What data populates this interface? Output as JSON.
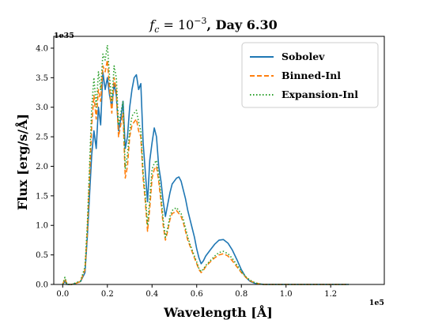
{
  "chart_data": {
    "type": "line",
    "title": "f_c = 10^{-3}, Day 6.30",
    "title_parts": {
      "f": "f",
      "sub": "c",
      "eq": " = 10",
      "sup": "−3",
      "rest": ", Day 6.30"
    },
    "xlabel": "Wavelength [Å]",
    "ylabel": "Flux [erg/s/Å]",
    "x_offset_label": "1e5",
    "y_offset_label": "1e35",
    "x_scale": 100000,
    "y_scale": 1e+35,
    "xlim": [
      -0.04,
      1.44
    ],
    "ylim": [
      0.0,
      4.2
    ],
    "xticks": [
      0.0,
      0.2,
      0.4,
      0.6,
      0.8,
      1.0,
      1.2
    ],
    "xtick_labels": [
      "0.0",
      "0.2",
      "0.4",
      "0.6",
      "0.8",
      "1.0",
      "1.2"
    ],
    "yticks": [
      0.0,
      0.5,
      1.0,
      1.5,
      2.0,
      2.5,
      3.0,
      3.5,
      4.0
    ],
    "ytick_labels": [
      "0.0",
      "0.5",
      "1.0",
      "1.5",
      "2.0",
      "2.5",
      "3.0",
      "3.5",
      "4.0"
    ],
    "legend_position": "top-right",
    "grid": false,
    "series": [
      {
        "name": "Sobolev",
        "color": "#1f77b4",
        "style": "solid",
        "x": [
          0.0,
          0.01,
          0.015,
          0.02,
          0.04,
          0.06,
          0.08,
          0.1,
          0.11,
          0.12,
          0.13,
          0.14,
          0.15,
          0.16,
          0.17,
          0.18,
          0.19,
          0.2,
          0.21,
          0.22,
          0.23,
          0.24,
          0.25,
          0.26,
          0.27,
          0.28,
          0.29,
          0.3,
          0.31,
          0.32,
          0.33,
          0.34,
          0.35,
          0.36,
          0.37,
          0.38,
          0.39,
          0.4,
          0.41,
          0.42,
          0.43,
          0.44,
          0.45,
          0.46,
          0.47,
          0.48,
          0.49,
          0.5,
          0.51,
          0.52,
          0.53,
          0.54,
          0.55,
          0.56,
          0.57,
          0.58,
          0.59,
          0.6,
          0.61,
          0.62,
          0.63,
          0.64,
          0.66,
          0.68,
          0.7,
          0.72,
          0.74,
          0.76,
          0.78,
          0.8,
          0.82,
          0.84,
          0.86,
          0.88,
          0.9,
          0.92,
          0.94,
          0.96,
          1.0,
          1.05,
          1.1,
          1.2,
          1.28
        ],
        "y": [
          0.0,
          0.05,
          0.02,
          0.0,
          0.0,
          0.02,
          0.05,
          0.2,
          0.8,
          1.5,
          2.2,
          2.6,
          2.3,
          3.0,
          2.7,
          3.6,
          3.3,
          3.5,
          3.2,
          3.0,
          3.4,
          3.2,
          2.6,
          2.8,
          3.1,
          2.3,
          2.5,
          3.0,
          3.3,
          3.5,
          3.55,
          3.3,
          3.4,
          2.4,
          1.9,
          1.4,
          2.1,
          2.4,
          2.65,
          2.5,
          2.0,
          1.75,
          1.4,
          1.15,
          1.35,
          1.55,
          1.7,
          1.75,
          1.8,
          1.82,
          1.75,
          1.6,
          1.45,
          1.25,
          1.1,
          0.95,
          0.8,
          0.6,
          0.45,
          0.35,
          0.4,
          0.48,
          0.58,
          0.68,
          0.75,
          0.76,
          0.7,
          0.58,
          0.42,
          0.25,
          0.12,
          0.05,
          0.02,
          0.01,
          0.0,
          0.0,
          0.0,
          0.0,
          0.0,
          0.0,
          0.0,
          0.0,
          0.0
        ]
      },
      {
        "name": "Binned-Inl",
        "color": "#ff7f0e",
        "style": "dashed",
        "x": [
          0.0,
          0.01,
          0.015,
          0.02,
          0.04,
          0.06,
          0.08,
          0.1,
          0.11,
          0.12,
          0.13,
          0.14,
          0.15,
          0.16,
          0.17,
          0.18,
          0.19,
          0.2,
          0.21,
          0.22,
          0.23,
          0.24,
          0.25,
          0.26,
          0.27,
          0.28,
          0.29,
          0.3,
          0.31,
          0.32,
          0.33,
          0.34,
          0.35,
          0.36,
          0.37,
          0.38,
          0.39,
          0.4,
          0.41,
          0.42,
          0.43,
          0.44,
          0.45,
          0.46,
          0.47,
          0.48,
          0.49,
          0.5,
          0.51,
          0.52,
          0.53,
          0.54,
          0.55,
          0.56,
          0.57,
          0.58,
          0.59,
          0.6,
          0.61,
          0.62,
          0.63,
          0.64,
          0.66,
          0.68,
          0.7,
          0.72,
          0.74,
          0.76,
          0.78,
          0.8,
          0.82,
          0.84,
          0.86,
          0.88,
          0.9,
          0.92,
          0.94,
          0.96,
          1.0,
          1.05,
          1.1,
          1.2,
          1.28
        ],
        "y": [
          0.0,
          0.1,
          0.05,
          0.0,
          0.0,
          0.02,
          0.05,
          0.25,
          0.9,
          1.8,
          2.7,
          3.2,
          2.8,
          3.3,
          3.1,
          3.7,
          3.6,
          3.8,
          3.3,
          2.9,
          3.5,
          3.3,
          2.5,
          2.7,
          2.9,
          1.8,
          2.0,
          2.5,
          2.7,
          2.75,
          2.8,
          2.6,
          2.5,
          1.8,
          1.4,
          0.9,
          1.3,
          1.8,
          1.95,
          2.0,
          1.75,
          1.4,
          1.0,
          0.75,
          0.9,
          1.1,
          1.2,
          1.22,
          1.25,
          1.2,
          1.15,
          1.05,
          0.9,
          0.75,
          0.65,
          0.55,
          0.45,
          0.35,
          0.25,
          0.2,
          0.24,
          0.3,
          0.38,
          0.45,
          0.5,
          0.52,
          0.48,
          0.4,
          0.3,
          0.2,
          0.12,
          0.06,
          0.03,
          0.01,
          0.0,
          0.0,
          0.0,
          0.0,
          0.0,
          0.0,
          0.0,
          0.0,
          0.0
        ]
      },
      {
        "name": "Expansion-Inl",
        "color": "#2ca02c",
        "style": "dotted",
        "x": [
          0.0,
          0.01,
          0.015,
          0.02,
          0.04,
          0.06,
          0.08,
          0.1,
          0.11,
          0.12,
          0.13,
          0.14,
          0.15,
          0.16,
          0.17,
          0.18,
          0.19,
          0.2,
          0.21,
          0.22,
          0.23,
          0.24,
          0.25,
          0.26,
          0.27,
          0.28,
          0.29,
          0.3,
          0.31,
          0.32,
          0.33,
          0.34,
          0.35,
          0.36,
          0.37,
          0.38,
          0.39,
          0.4,
          0.41,
          0.42,
          0.43,
          0.44,
          0.45,
          0.46,
          0.47,
          0.48,
          0.49,
          0.5,
          0.51,
          0.52,
          0.53,
          0.54,
          0.55,
          0.56,
          0.57,
          0.58,
          0.59,
          0.6,
          0.61,
          0.62,
          0.63,
          0.64,
          0.66,
          0.68,
          0.7,
          0.72,
          0.74,
          0.76,
          0.78,
          0.8,
          0.82,
          0.84,
          0.86,
          0.88,
          0.9,
          0.92,
          0.94,
          0.96,
          1.0,
          1.05,
          1.1,
          1.2,
          1.28
        ],
        "y": [
          0.0,
          0.12,
          0.05,
          0.0,
          0.0,
          0.03,
          0.06,
          0.3,
          1.0,
          2.0,
          3.0,
          3.5,
          3.0,
          3.6,
          3.3,
          3.9,
          3.8,
          4.05,
          3.5,
          3.1,
          3.7,
          3.5,
          2.7,
          2.9,
          3.1,
          1.95,
          2.2,
          2.6,
          2.85,
          2.9,
          2.95,
          2.75,
          2.6,
          1.9,
          1.5,
          1.0,
          1.45,
          1.95,
          2.05,
          2.1,
          1.85,
          1.5,
          1.1,
          0.8,
          0.95,
          1.15,
          1.25,
          1.28,
          1.3,
          1.25,
          1.2,
          1.1,
          0.95,
          0.8,
          0.68,
          0.58,
          0.48,
          0.38,
          0.27,
          0.22,
          0.26,
          0.32,
          0.4,
          0.48,
          0.54,
          0.56,
          0.52,
          0.44,
          0.33,
          0.22,
          0.13,
          0.07,
          0.03,
          0.01,
          0.0,
          0.0,
          0.0,
          0.0,
          0.0,
          0.0,
          0.0,
          0.0,
          0.0
        ]
      }
    ]
  }
}
